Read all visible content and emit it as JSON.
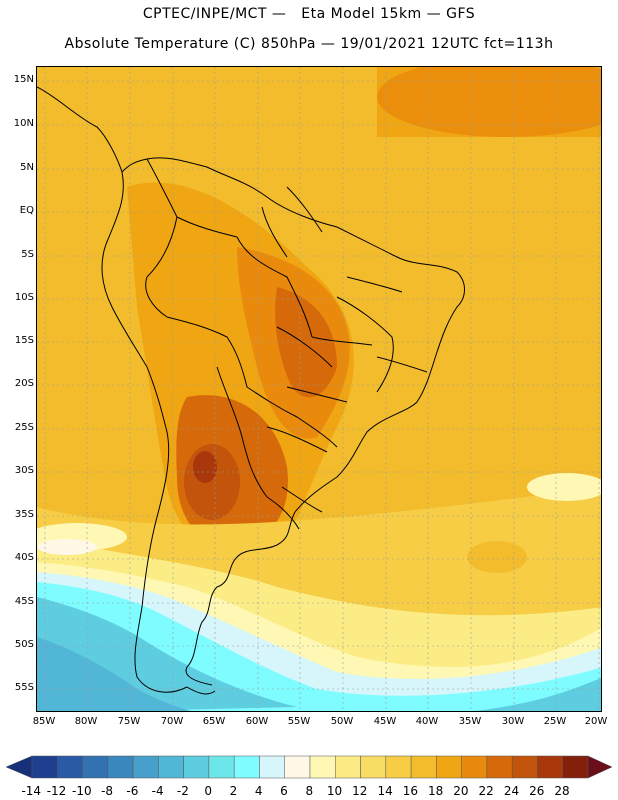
{
  "header": {
    "line1": "CPTEC/INPE/MCT —   Eta Model 15km — GFS",
    "line2": "Absolute Temperature (C) 850hPa — 19/01/2021 12UTC fct=113h"
  },
  "axes": {
    "lat_labels": [
      "15N",
      "10N",
      "5N",
      "EQ",
      "5S",
      "10S",
      "15S",
      "20S",
      "25S",
      "30S",
      "35S",
      "40S",
      "45S",
      "50S",
      "55S"
    ],
    "lon_labels": [
      "85W",
      "80W",
      "75W",
      "70W",
      "65W",
      "60W",
      "55W",
      "50W",
      "45W",
      "40W",
      "35W",
      "30W",
      "25W",
      "20W"
    ]
  },
  "colorbar": {
    "labels": [
      "-14",
      "-12",
      "-10",
      "-8",
      "-6",
      "-4",
      "-2",
      "0",
      "2",
      "4",
      "6",
      "8",
      "10",
      "12",
      "14",
      "16",
      "18",
      "20",
      "22",
      "24",
      "26",
      "28"
    ],
    "colors": [
      "#1e3f8f",
      "#2a5aa5",
      "#3272b3",
      "#3b88bf",
      "#46a0cb",
      "#52b6d6",
      "#5fcde0",
      "#6de6ea",
      "#7ffcff",
      "#d6f6fb",
      "#fff8e6",
      "#fef8b4",
      "#fcec86",
      "#f9dc63",
      "#f6cd45",
      "#f3bc2c",
      "#f0a612",
      "#e98a0c",
      "#d66a0a",
      "#c2540c",
      "#a8380b",
      "#82200c"
    ],
    "end_low": "#17307a",
    "end_high": "#6a0f1a"
  }
}
